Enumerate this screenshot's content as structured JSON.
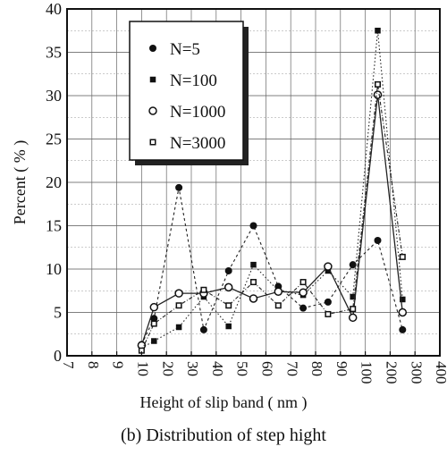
{
  "chart_data": {
    "type": "line",
    "xlabel": "Height of slip band ( nm )",
    "ylabel": "Percent ( % )",
    "caption": "(b) Distribution of step hight",
    "x_ticks": [
      "7",
      "8",
      "9",
      "10",
      "20",
      "30",
      "40",
      "50",
      "60",
      "70",
      "80",
      "90",
      "100",
      "200",
      "300",
      "400"
    ],
    "y_ticks": [
      "0",
      "5",
      "10",
      "15",
      "20",
      "25",
      "30",
      "35",
      "40"
    ],
    "ylim": [
      0,
      40
    ],
    "grid": true,
    "legend_position": "top-left",
    "categories": [
      "10",
      "15",
      "25",
      "35",
      "45",
      "55",
      "65",
      "75",
      "85",
      "95",
      "150",
      "250"
    ],
    "series": [
      {
        "name": "N=5",
        "marker": "filled-circle",
        "values": [
          1.3,
          4.3,
          19.4,
          3.0,
          9.8,
          15.0,
          8.0,
          5.5,
          6.2,
          10.5,
          13.3,
          3.0
        ]
      },
      {
        "name": "N=100",
        "marker": "filled-square",
        "values": [
          0.9,
          1.7,
          3.3,
          6.8,
          3.4,
          10.5,
          7.5,
          7.0,
          9.8,
          6.8,
          37.5,
          6.5
        ]
      },
      {
        "name": "N=1000",
        "marker": "open-circle",
        "values": [
          1.2,
          5.6,
          7.2,
          7.2,
          7.9,
          6.6,
          7.4,
          7.3,
          10.3,
          4.4,
          30.1,
          5.0
        ]
      },
      {
        "name": "N=3000",
        "marker": "open-square",
        "values": [
          0.6,
          3.7,
          5.8,
          7.6,
          5.8,
          8.5,
          5.8,
          8.5,
          4.8,
          5.4,
          31.3,
          11.4
        ]
      }
    ]
  }
}
